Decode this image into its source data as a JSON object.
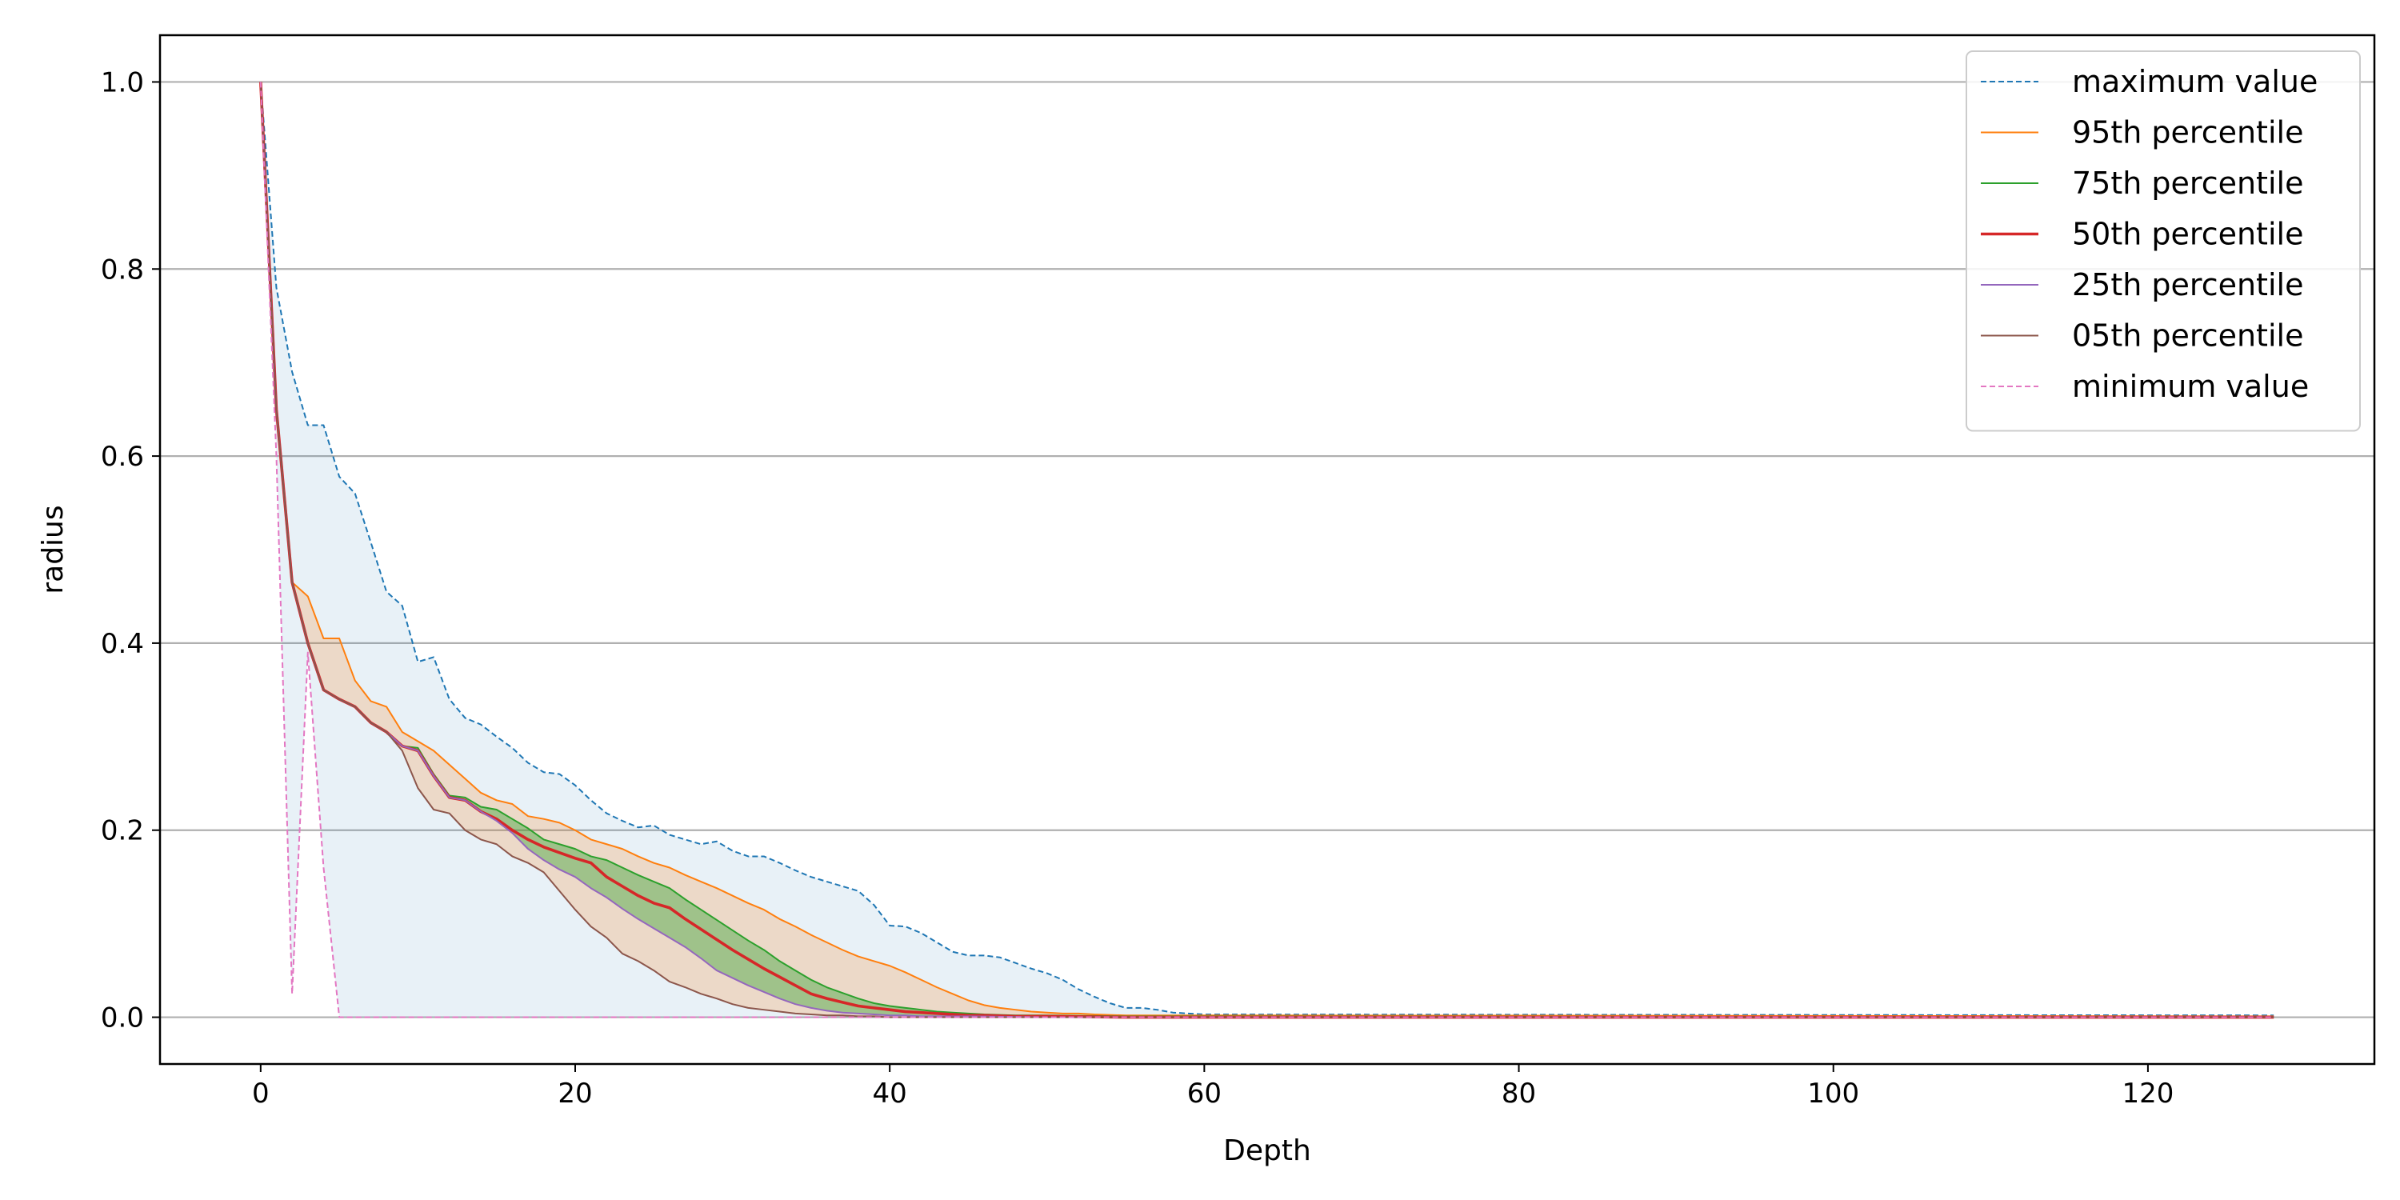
{
  "chart_data": {
    "type": "line",
    "title": "",
    "xlabel": "Depth",
    "ylabel": "radius",
    "xlim": [
      -6.4,
      134.4
    ],
    "ylim": [
      -0.05,
      1.05
    ],
    "xticks": [
      0,
      20,
      40,
      60,
      80,
      100,
      120
    ],
    "yticks": [
      0.0,
      0.2,
      0.4,
      0.6,
      0.8,
      1.0
    ],
    "xtick_labels": [
      "0",
      "20",
      "40",
      "60",
      "80",
      "100",
      "120"
    ],
    "ytick_labels": [
      "0.0",
      "0.2",
      "0.4",
      "0.6",
      "0.8",
      "1.0"
    ],
    "grid": "horizontal",
    "legend_position": "top-right",
    "series": [
      {
        "name": "maximum value",
        "color": "#1f77b4",
        "style": "dashed",
        "x": [
          0,
          1,
          2,
          3,
          4,
          5,
          6,
          7,
          8,
          9,
          10,
          11,
          12,
          13,
          14,
          15,
          16,
          17,
          18,
          19,
          20,
          21,
          22,
          23,
          24,
          25,
          26,
          27,
          28,
          29,
          30,
          31,
          32,
          33,
          34,
          35,
          36,
          37,
          38,
          39,
          40,
          41,
          42,
          43,
          44,
          45,
          46,
          47,
          48,
          49,
          50,
          51,
          52,
          53,
          54,
          55,
          56,
          57,
          58,
          59,
          60,
          62,
          128
        ],
        "y": [
          1.0,
          0.78,
          0.69,
          0.633,
          0.633,
          0.578,
          0.56,
          0.508,
          0.455,
          0.44,
          0.38,
          0.385,
          0.34,
          0.32,
          0.313,
          0.3,
          0.288,
          0.272,
          0.262,
          0.26,
          0.248,
          0.232,
          0.218,
          0.21,
          0.203,
          0.205,
          0.195,
          0.19,
          0.185,
          0.188,
          0.178,
          0.172,
          0.172,
          0.165,
          0.157,
          0.15,
          0.145,
          0.14,
          0.135,
          0.12,
          0.098,
          0.097,
          0.09,
          0.08,
          0.07,
          0.066,
          0.066,
          0.064,
          0.058,
          0.052,
          0.047,
          0.04,
          0.03,
          0.022,
          0.015,
          0.01,
          0.01,
          0.008,
          0.005,
          0.004,
          0.003,
          0.003,
          0.002
        ]
      },
      {
        "name": "95th percentile",
        "color": "#ff7f0e",
        "style": "solid",
        "x": [
          0,
          1,
          2,
          3,
          4,
          5,
          6,
          7,
          8,
          9,
          10,
          11,
          12,
          13,
          14,
          15,
          16,
          17,
          18,
          19,
          20,
          21,
          22,
          23,
          24,
          25,
          26,
          27,
          28,
          29,
          30,
          31,
          32,
          33,
          34,
          35,
          36,
          37,
          38,
          39,
          40,
          41,
          42,
          43,
          44,
          45,
          46,
          47,
          48,
          49,
          50,
          51,
          52,
          53,
          55,
          58,
          60,
          128
        ],
        "y": [
          1.0,
          0.65,
          0.465,
          0.45,
          0.405,
          0.405,
          0.36,
          0.338,
          0.332,
          0.305,
          0.295,
          0.285,
          0.27,
          0.255,
          0.24,
          0.232,
          0.228,
          0.215,
          0.212,
          0.208,
          0.2,
          0.19,
          0.185,
          0.18,
          0.172,
          0.165,
          0.16,
          0.152,
          0.145,
          0.138,
          0.13,
          0.122,
          0.115,
          0.105,
          0.097,
          0.088,
          0.08,
          0.072,
          0.065,
          0.06,
          0.055,
          0.048,
          0.04,
          0.032,
          0.025,
          0.018,
          0.013,
          0.01,
          0.008,
          0.006,
          0.005,
          0.004,
          0.004,
          0.003,
          0.002,
          0.002,
          0.002,
          0.001
        ]
      },
      {
        "name": "75th percentile",
        "color": "#2ca02c",
        "style": "solid",
        "x": [
          0,
          1,
          2,
          3,
          4,
          5,
          6,
          7,
          8,
          9,
          10,
          11,
          12,
          13,
          14,
          15,
          16,
          17,
          18,
          19,
          20,
          21,
          22,
          23,
          24,
          25,
          26,
          27,
          28,
          29,
          30,
          31,
          32,
          33,
          34,
          35,
          36,
          37,
          38,
          39,
          40,
          41,
          42,
          43,
          44,
          45,
          46,
          48,
          50,
          55,
          60,
          128
        ],
        "y": [
          1.0,
          0.65,
          0.465,
          0.4,
          0.35,
          0.34,
          0.332,
          0.315,
          0.305,
          0.29,
          0.288,
          0.26,
          0.237,
          0.235,
          0.225,
          0.222,
          0.212,
          0.202,
          0.19,
          0.185,
          0.18,
          0.172,
          0.168,
          0.16,
          0.152,
          0.145,
          0.138,
          0.126,
          0.115,
          0.104,
          0.093,
          0.082,
          0.072,
          0.06,
          0.05,
          0.04,
          0.032,
          0.026,
          0.02,
          0.015,
          0.012,
          0.01,
          0.008,
          0.006,
          0.005,
          0.004,
          0.003,
          0.002,
          0.002,
          0.001,
          0.001,
          0.0
        ]
      },
      {
        "name": "50th percentile",
        "color": "#d62728",
        "style": "solid",
        "x": [
          0,
          1,
          2,
          3,
          4,
          5,
          6,
          7,
          8,
          9,
          10,
          11,
          12,
          13,
          14,
          15,
          16,
          17,
          18,
          19,
          20,
          21,
          22,
          23,
          24,
          25,
          26,
          27,
          28,
          29,
          30,
          31,
          32,
          33,
          34,
          35,
          36,
          37,
          38,
          39,
          40,
          41,
          42,
          43,
          44,
          45,
          46,
          48,
          50,
          55,
          60,
          128
        ],
        "y": [
          1.0,
          0.65,
          0.465,
          0.4,
          0.35,
          0.34,
          0.332,
          0.315,
          0.305,
          0.29,
          0.285,
          0.258,
          0.235,
          0.232,
          0.22,
          0.212,
          0.2,
          0.19,
          0.182,
          0.176,
          0.17,
          0.165,
          0.15,
          0.14,
          0.13,
          0.122,
          0.117,
          0.105,
          0.094,
          0.083,
          0.072,
          0.062,
          0.052,
          0.043,
          0.034,
          0.025,
          0.02,
          0.016,
          0.012,
          0.01,
          0.008,
          0.006,
          0.005,
          0.004,
          0.003,
          0.002,
          0.002,
          0.001,
          0.001,
          0.0,
          0.0,
          0.0
        ]
      },
      {
        "name": "25th percentile",
        "color": "#9467bd",
        "style": "solid",
        "x": [
          0,
          1,
          2,
          3,
          4,
          5,
          6,
          7,
          8,
          9,
          10,
          11,
          12,
          13,
          14,
          15,
          16,
          17,
          18,
          19,
          20,
          21,
          22,
          23,
          24,
          25,
          26,
          27,
          28,
          29,
          30,
          31,
          32,
          33,
          34,
          35,
          36,
          37,
          38,
          39,
          40,
          41,
          42,
          45,
          50,
          60,
          128
        ],
        "y": [
          1.0,
          0.65,
          0.465,
          0.4,
          0.35,
          0.34,
          0.332,
          0.315,
          0.305,
          0.29,
          0.285,
          0.258,
          0.235,
          0.232,
          0.22,
          0.21,
          0.197,
          0.18,
          0.168,
          0.158,
          0.15,
          0.138,
          0.128,
          0.116,
          0.105,
          0.095,
          0.085,
          0.075,
          0.063,
          0.05,
          0.042,
          0.034,
          0.027,
          0.02,
          0.014,
          0.01,
          0.007,
          0.005,
          0.004,
          0.003,
          0.002,
          0.002,
          0.001,
          0.001,
          0.0,
          0.0,
          0.0
        ]
      },
      {
        "name": "05th percentile",
        "color": "#8c564b",
        "style": "solid",
        "x": [
          0,
          1,
          2,
          3,
          4,
          5,
          6,
          7,
          8,
          9,
          10,
          11,
          12,
          13,
          14,
          15,
          16,
          17,
          18,
          19,
          20,
          21,
          22,
          23,
          24,
          25,
          26,
          27,
          28,
          29,
          30,
          31,
          32,
          33,
          34,
          35,
          36,
          37,
          38,
          39,
          40,
          45,
          50,
          128
        ],
        "y": [
          1.0,
          0.65,
          0.465,
          0.4,
          0.35,
          0.34,
          0.332,
          0.315,
          0.305,
          0.285,
          0.245,
          0.222,
          0.218,
          0.2,
          0.19,
          0.185,
          0.172,
          0.165,
          0.155,
          0.135,
          0.115,
          0.097,
          0.085,
          0.068,
          0.06,
          0.05,
          0.038,
          0.032,
          0.025,
          0.02,
          0.014,
          0.01,
          0.008,
          0.006,
          0.004,
          0.003,
          0.002,
          0.002,
          0.001,
          0.001,
          0.0,
          0.0,
          0.0,
          0.0
        ]
      },
      {
        "name": "minimum value",
        "color": "#e377c2",
        "style": "dashed",
        "x": [
          0,
          1,
          2,
          3,
          4,
          5,
          6,
          128
        ],
        "y": [
          1.0,
          0.6,
          0.025,
          0.39,
          0.16,
          0.0,
          0.0,
          0.0
        ]
      }
    ],
    "bands": [
      {
        "upper": "maximum value",
        "lower": "minimum value",
        "color": "#1f77b4",
        "opacity": 0.1
      },
      {
        "upper": "95th percentile",
        "lower": "05th percentile",
        "color": "#ff7f0e",
        "opacity": 0.2
      },
      {
        "upper": "75th percentile",
        "lower": "25th percentile",
        "color": "#2ca02c",
        "opacity": 0.4
      }
    ]
  }
}
